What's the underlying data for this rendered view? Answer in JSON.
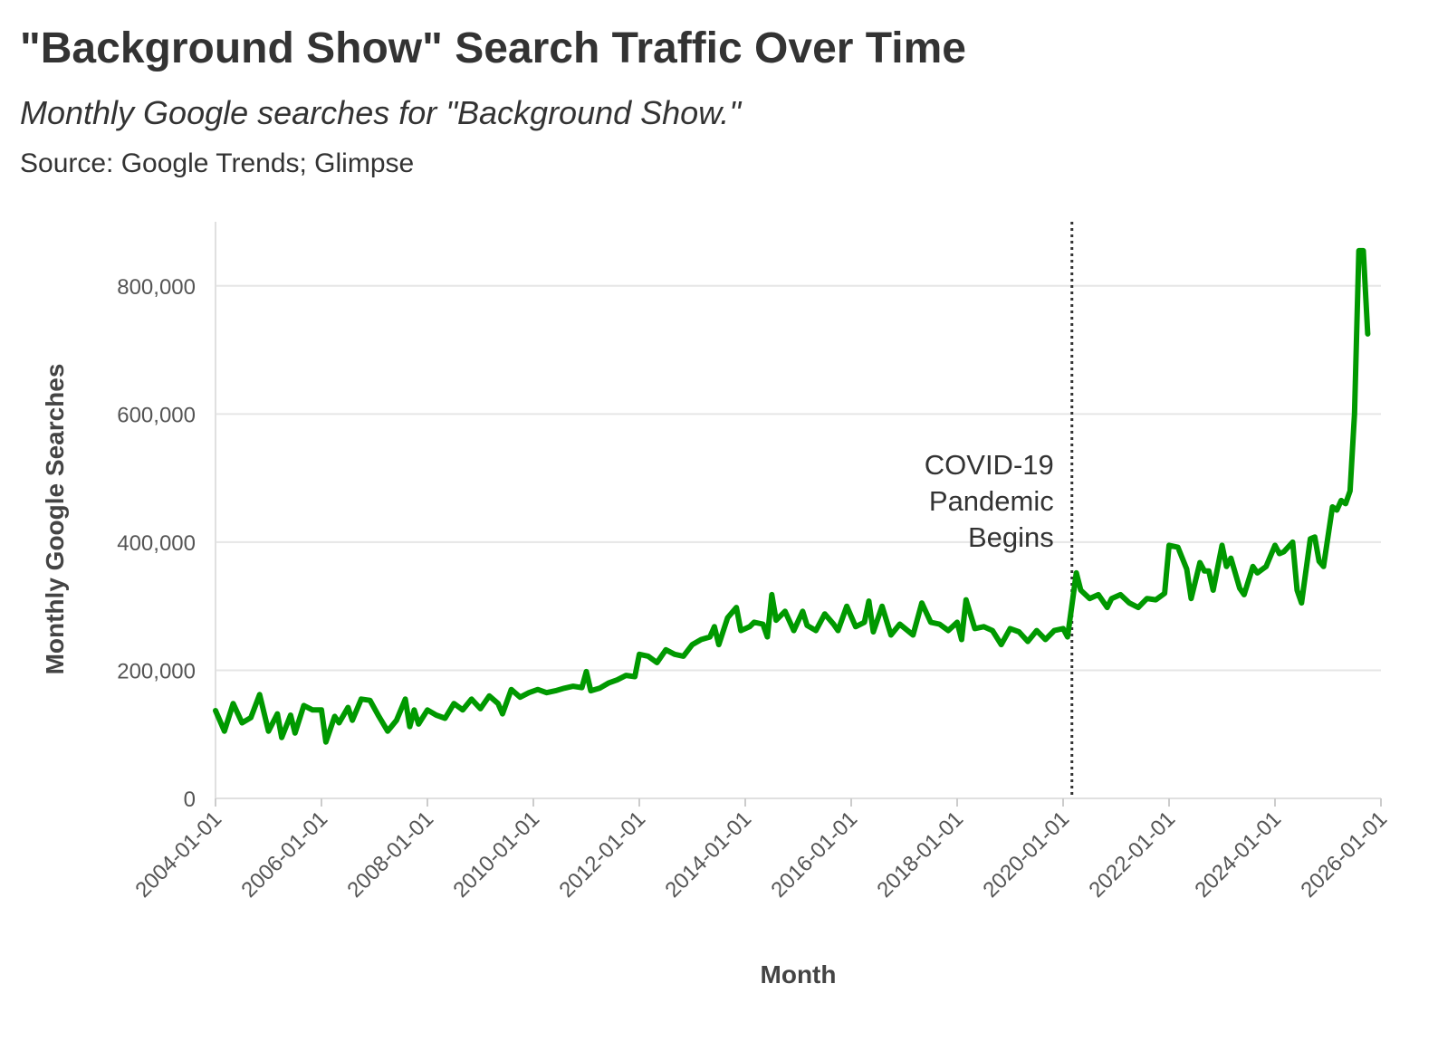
{
  "chart_data": {
    "type": "line",
    "title": "\"Background Show\" Search Traffic Over Time",
    "subtitle": "Monthly Google searches for \"Background Show.\"",
    "caption": "Source: Google Trends; Glimpse",
    "xlabel": "Month",
    "ylabel": "Monthly Google Searches",
    "x_ticks": [
      "2004-01-01",
      "2006-01-01",
      "2008-01-01",
      "2010-01-01",
      "2012-01-01",
      "2014-01-01",
      "2016-01-01",
      "2018-01-01",
      "2020-01-01",
      "2022-01-01",
      "2024-01-01",
      "2026-01-01"
    ],
    "y_ticks": [
      0,
      200000,
      400000,
      600000,
      800000
    ],
    "y_tick_labels": [
      "0",
      "200,000",
      "400,000",
      "600,000",
      "800,000"
    ],
    "xlim": [
      "2004-01-01",
      "2026-01-01"
    ],
    "ylim": [
      0,
      900000
    ],
    "grid": true,
    "line_color": "#009900",
    "annotation": {
      "date": "2020-03-01",
      "label_lines": [
        "COVID-19",
        "Pandemic",
        "Begins"
      ],
      "style": "dotted vertical line"
    },
    "series": [
      {
        "points": [
          [
            "2004-01",
            137000
          ],
          [
            "2004-03",
            105000
          ],
          [
            "2004-05",
            148000
          ],
          [
            "2004-07",
            118000
          ],
          [
            "2004-09",
            126000
          ],
          [
            "2004-11",
            162000
          ],
          [
            "2005-01",
            105000
          ],
          [
            "2005-03",
            132000
          ],
          [
            "2005-04",
            95000
          ],
          [
            "2005-06",
            130000
          ],
          [
            "2005-07",
            102000
          ],
          [
            "2005-09",
            145000
          ],
          [
            "2005-11",
            138000
          ],
          [
            "2006-01",
            138000
          ],
          [
            "2006-02",
            88000
          ],
          [
            "2006-04",
            128000
          ],
          [
            "2006-05",
            118000
          ],
          [
            "2006-07",
            142000
          ],
          [
            "2006-08",
            122000
          ],
          [
            "2006-10",
            155000
          ],
          [
            "2006-12",
            153000
          ],
          [
            "2007-02",
            128000
          ],
          [
            "2007-04",
            105000
          ],
          [
            "2007-06",
            122000
          ],
          [
            "2007-08",
            155000
          ],
          [
            "2007-09",
            112000
          ],
          [
            "2007-10",
            138000
          ],
          [
            "2007-11",
            116000
          ],
          [
            "2008-01",
            138000
          ],
          [
            "2008-03",
            130000
          ],
          [
            "2008-05",
            125000
          ],
          [
            "2008-07",
            148000
          ],
          [
            "2008-09",
            138000
          ],
          [
            "2008-11",
            155000
          ],
          [
            "2009-01",
            140000
          ],
          [
            "2009-03",
            160000
          ],
          [
            "2009-05",
            148000
          ],
          [
            "2009-06",
            132000
          ],
          [
            "2009-08",
            170000
          ],
          [
            "2009-10",
            158000
          ],
          [
            "2009-12",
            165000
          ],
          [
            "2010-02",
            170000
          ],
          [
            "2010-04",
            165000
          ],
          [
            "2010-06",
            168000
          ],
          [
            "2010-08",
            172000
          ],
          [
            "2010-10",
            175000
          ],
          [
            "2010-12",
            173000
          ],
          [
            "2011-01",
            198000
          ],
          [
            "2011-02",
            168000
          ],
          [
            "2011-04",
            172000
          ],
          [
            "2011-06",
            180000
          ],
          [
            "2011-08",
            185000
          ],
          [
            "2011-10",
            192000
          ],
          [
            "2011-12",
            190000
          ],
          [
            "2012-01",
            225000
          ],
          [
            "2012-03",
            222000
          ],
          [
            "2012-05",
            212000
          ],
          [
            "2012-07",
            232000
          ],
          [
            "2012-09",
            225000
          ],
          [
            "2012-11",
            222000
          ],
          [
            "2013-01",
            240000
          ],
          [
            "2013-03",
            248000
          ],
          [
            "2013-05",
            252000
          ],
          [
            "2013-06",
            268000
          ],
          [
            "2013-07",
            240000
          ],
          [
            "2013-09",
            282000
          ],
          [
            "2013-11",
            298000
          ],
          [
            "2013-12",
            262000
          ],
          [
            "2014-02",
            268000
          ],
          [
            "2014-03",
            275000
          ],
          [
            "2014-05",
            272000
          ],
          [
            "2014-06",
            252000
          ],
          [
            "2014-07",
            318000
          ],
          [
            "2014-08",
            278000
          ],
          [
            "2014-10",
            292000
          ],
          [
            "2014-12",
            262000
          ],
          [
            "2015-02",
            292000
          ],
          [
            "2015-03",
            270000
          ],
          [
            "2015-05",
            262000
          ],
          [
            "2015-07",
            288000
          ],
          [
            "2015-09",
            272000
          ],
          [
            "2015-10",
            262000
          ],
          [
            "2015-12",
            300000
          ],
          [
            "2016-02",
            268000
          ],
          [
            "2016-04",
            275000
          ],
          [
            "2016-05",
            308000
          ],
          [
            "2016-06",
            260000
          ],
          [
            "2016-08",
            300000
          ],
          [
            "2016-10",
            255000
          ],
          [
            "2016-12",
            272000
          ],
          [
            "2017-03",
            255000
          ],
          [
            "2017-05",
            305000
          ],
          [
            "2017-07",
            275000
          ],
          [
            "2017-09",
            272000
          ],
          [
            "2017-11",
            262000
          ],
          [
            "2018-01",
            275000
          ],
          [
            "2018-02",
            248000
          ],
          [
            "2018-03",
            310000
          ],
          [
            "2018-05",
            265000
          ],
          [
            "2018-07",
            268000
          ],
          [
            "2018-09",
            262000
          ],
          [
            "2018-11",
            240000
          ],
          [
            "2019-01",
            265000
          ],
          [
            "2019-03",
            260000
          ],
          [
            "2019-05",
            245000
          ],
          [
            "2019-07",
            262000
          ],
          [
            "2019-09",
            248000
          ],
          [
            "2019-11",
            262000
          ],
          [
            "2020-01",
            265000
          ],
          [
            "2020-02",
            252000
          ],
          [
            "2020-04",
            352000
          ],
          [
            "2020-05",
            325000
          ],
          [
            "2020-07",
            312000
          ],
          [
            "2020-09",
            318000
          ],
          [
            "2020-11",
            298000
          ],
          [
            "2020-12",
            312000
          ],
          [
            "2021-02",
            318000
          ],
          [
            "2021-04",
            305000
          ],
          [
            "2021-06",
            298000
          ],
          [
            "2021-08",
            312000
          ],
          [
            "2021-10",
            310000
          ],
          [
            "2021-12",
            320000
          ],
          [
            "2022-01",
            395000
          ],
          [
            "2022-03",
            392000
          ],
          [
            "2022-05",
            358000
          ],
          [
            "2022-06",
            312000
          ],
          [
            "2022-08",
            368000
          ],
          [
            "2022-09",
            355000
          ],
          [
            "2022-10",
            355000
          ],
          [
            "2022-11",
            325000
          ],
          [
            "2023-01",
            395000
          ],
          [
            "2023-02",
            362000
          ],
          [
            "2023-03",
            375000
          ],
          [
            "2023-05",
            328000
          ],
          [
            "2023-06",
            318000
          ],
          [
            "2023-08",
            362000
          ],
          [
            "2023-09",
            352000
          ],
          [
            "2023-11",
            362000
          ],
          [
            "2024-01",
            395000
          ],
          [
            "2024-02",
            382000
          ],
          [
            "2024-03",
            385000
          ],
          [
            "2024-05",
            400000
          ],
          [
            "2024-06",
            325000
          ],
          [
            "2024-07",
            305000
          ],
          [
            "2024-09",
            405000
          ],
          [
            "2024-10",
            408000
          ],
          [
            "2024-11",
            370000
          ],
          [
            "2024-12",
            362000
          ],
          [
            "2025-02",
            455000
          ],
          [
            "2025-03",
            450000
          ],
          [
            "2025-04",
            465000
          ],
          [
            "2025-05",
            460000
          ],
          [
            "2025-06",
            480000
          ],
          [
            "2025-07",
            600000
          ],
          [
            "2025-08",
            855000
          ],
          [
            "2025-09",
            855000
          ],
          [
            "2025-10",
            725000
          ]
        ]
      }
    ]
  }
}
